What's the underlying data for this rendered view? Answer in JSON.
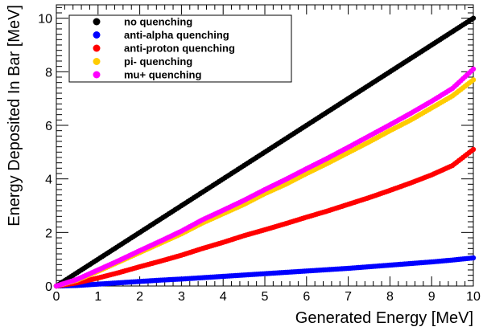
{
  "chart_data": {
    "type": "scatter",
    "title": "",
    "xlabel": "Generated Energy [MeV]",
    "ylabel": "Energy Deposited In Bar [MeV]",
    "xlim": [
      0,
      10
    ],
    "ylim": [
      0,
      10.5
    ],
    "x_ticks": [
      "0",
      "1",
      "2",
      "3",
      "4",
      "5",
      "6",
      "7",
      "8",
      "9",
      "10"
    ],
    "y_ticks": [
      "0",
      "2",
      "4",
      "6",
      "8",
      "10"
    ],
    "grid": false,
    "legend_position": "top-left",
    "x": [
      0,
      0.5,
      1,
      1.5,
      2,
      2.5,
      3,
      3.5,
      4,
      4.5,
      5,
      5.5,
      6,
      6.5,
      7,
      7.5,
      8,
      8.5,
      9,
      9.5,
      10
    ],
    "series": [
      {
        "name": "no quenching",
        "color": "#000000",
        "values": [
          0,
          0.5,
          1.0,
          1.5,
          2.0,
          2.5,
          3.0,
          3.5,
          4.0,
          4.5,
          5.0,
          5.5,
          6.0,
          6.5,
          7.0,
          7.5,
          8.0,
          8.5,
          9.0,
          9.5,
          10.0
        ]
      },
      {
        "name": "anti-alpha quenching",
        "color": "#0000ff",
        "values": [
          0,
          0.02,
          0.07,
          0.12,
          0.17,
          0.22,
          0.26,
          0.31,
          0.36,
          0.41,
          0.46,
          0.51,
          0.56,
          0.61,
          0.66,
          0.72,
          0.78,
          0.84,
          0.9,
          0.97,
          1.05
        ]
      },
      {
        "name": "anti-proton quenching",
        "color": "#ff0000",
        "values": [
          0,
          0.12,
          0.3,
          0.5,
          0.72,
          0.93,
          1.15,
          1.4,
          1.63,
          1.88,
          2.1,
          2.33,
          2.57,
          2.8,
          3.05,
          3.3,
          3.57,
          3.85,
          4.15,
          4.5,
          5.1
        ]
      },
      {
        "name": "pi- quenching",
        "color": "#ffcc00",
        "values": [
          0,
          0.22,
          0.55,
          0.9,
          1.25,
          1.6,
          1.95,
          2.35,
          2.7,
          3.05,
          3.45,
          3.8,
          4.2,
          4.58,
          4.98,
          5.38,
          5.8,
          6.2,
          6.65,
          7.1,
          7.7
        ]
      },
      {
        "name": "mu+ quenching",
        "color": "#ff00ff",
        "values": [
          0,
          0.25,
          0.6,
          0.95,
          1.32,
          1.68,
          2.05,
          2.47,
          2.83,
          3.2,
          3.6,
          3.98,
          4.38,
          4.77,
          5.18,
          5.6,
          6.02,
          6.45,
          6.9,
          7.38,
          8.1
        ]
      }
    ]
  }
}
